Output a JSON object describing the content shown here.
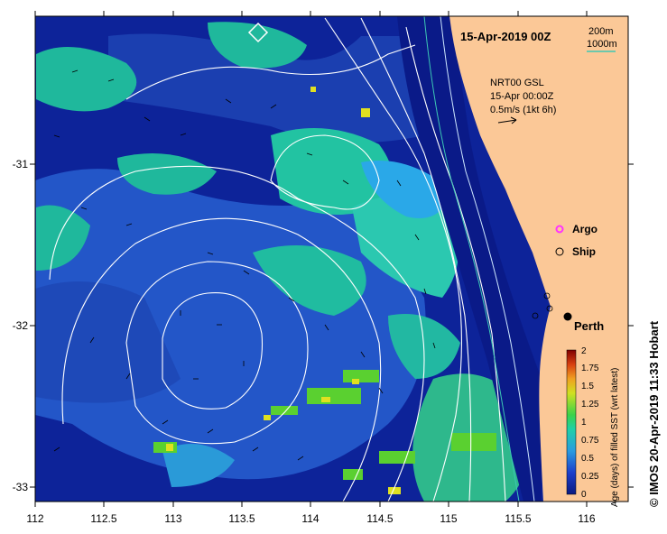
{
  "title": "15-Apr-2019 00Z",
  "contour_legend": {
    "c200": "200m",
    "c1000": "1000m",
    "c200_color": "#cfe8ff",
    "c1000_color": "#3cc8b4"
  },
  "product": {
    "line1": "NRT00 GSL",
    "line2": "15-Apr 00:00Z",
    "line3": "0.5m/s (1kt 6h)"
  },
  "markers": {
    "argo": "Argo",
    "ship": "Ship",
    "argo_color": "#ff33ff"
  },
  "city": "Perth",
  "credit": "© IMOS 20-Apr-2019 11:33 Hobart",
  "axes": {
    "x_ticks": [
      "112",
      "112.5",
      "113",
      "113.5",
      "114",
      "114.5",
      "115",
      "115.5",
      "116"
    ],
    "y_ticks": [
      "-31",
      "-32",
      "-33"
    ]
  },
  "colorbar": {
    "label": "Age (days) of filled SST (wrt latest)",
    "ticks": [
      "0",
      "0.25",
      "0.5",
      "0.75",
      "1",
      "1.25",
      "1.5",
      "1.75",
      "2"
    ]
  },
  "colors": {
    "land": "#fbc897",
    "ocean_deep": "#0a1d8f",
    "ocean_mid": "#1f4fc8",
    "ocean_teal": "#1fc0a0"
  }
}
